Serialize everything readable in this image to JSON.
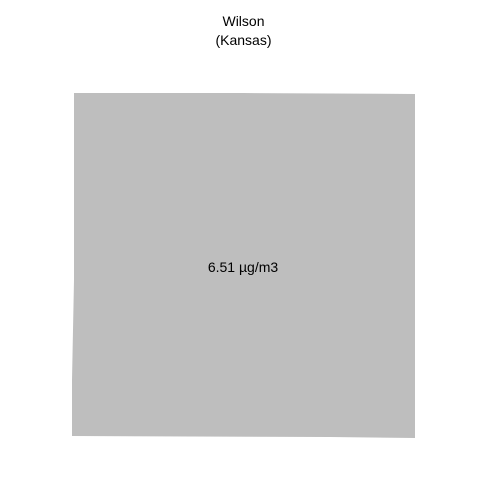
{
  "map": {
    "title": "Wilson",
    "subtitle": "(Kansas)",
    "region": {
      "name": "Wilson",
      "state": "Kansas",
      "value_label": "6.51 µg/m3",
      "value": 6.51,
      "unit": "µg/m3",
      "fill_color": "#bebebe"
    }
  }
}
